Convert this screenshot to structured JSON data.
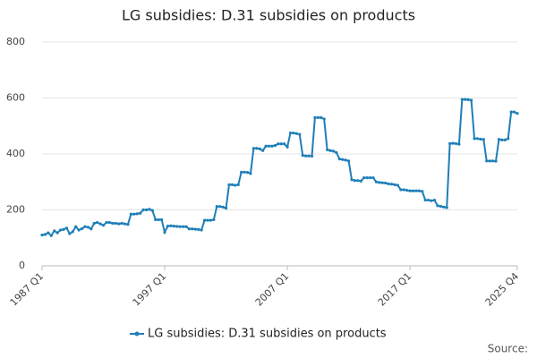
{
  "chart_data": {
    "type": "line",
    "title": "LG subsidies: D.31 subsidies on products",
    "categories": [
      "1987 Q1",
      null,
      null,
      null,
      null,
      null,
      null,
      null,
      null,
      null,
      null,
      null,
      null,
      null,
      null,
      null,
      null,
      null,
      null,
      null,
      null,
      null,
      null,
      null,
      null,
      null,
      null,
      null,
      null,
      null,
      null,
      null,
      null,
      null,
      null,
      null,
      null,
      null,
      null,
      null,
      "1997 Q1",
      null,
      null,
      null,
      null,
      null,
      null,
      null,
      null,
      null,
      null,
      null,
      null,
      null,
      null,
      null,
      null,
      null,
      null,
      null,
      null,
      null,
      null,
      null,
      null,
      null,
      null,
      null,
      null,
      null,
      null,
      null,
      null,
      null,
      null,
      null,
      null,
      null,
      null,
      null,
      "2007 Q1",
      null,
      null,
      null,
      null,
      null,
      null,
      null,
      null,
      null,
      null,
      null,
      null,
      null,
      null,
      null,
      null,
      null,
      null,
      null,
      null,
      null,
      null,
      null,
      null,
      null,
      null,
      null,
      null,
      null,
      null,
      null,
      null,
      null,
      null,
      null,
      null,
      null,
      null,
      null,
      "2017 Q1",
      null,
      null,
      null,
      null,
      null,
      null,
      null,
      null,
      null,
      null,
      null,
      null,
      null,
      null,
      null,
      null,
      null,
      null,
      null,
      null,
      null,
      null,
      null,
      null,
      null,
      null,
      null,
      null,
      null,
      null,
      null,
      null,
      null,
      null,
      "2025 Q4"
    ],
    "series": [
      {
        "name": "LG subsidies: D.31 subsidies on products",
        "color": "#1f7fb8",
        "values": [
          110,
          112,
          118,
          108,
          125,
          118,
          128,
          130,
          135,
          115,
          122,
          140,
          128,
          133,
          140,
          138,
          132,
          152,
          155,
          150,
          145,
          155,
          155,
          152,
          152,
          150,
          152,
          150,
          148,
          185,
          185,
          186,
          188,
          200,
          200,
          202,
          198,
          165,
          165,
          165,
          120,
          142,
          143,
          142,
          141,
          140,
          140,
          140,
          132,
          132,
          131,
          130,
          128,
          163,
          163,
          163,
          165,
          212,
          212,
          210,
          206,
          290,
          290,
          288,
          290,
          335,
          335,
          334,
          330,
          420,
          420,
          418,
          412,
          428,
          428,
          428,
          430,
          436,
          436,
          436,
          425,
          475,
          475,
          473,
          470,
          395,
          393,
          393,
          392,
          530,
          530,
          530,
          525,
          415,
          412,
          410,
          405,
          382,
          380,
          378,
          375,
          308,
          305,
          305,
          303,
          315,
          315,
          315,
          315,
          300,
          298,
          297,
          296,
          293,
          292,
          290,
          288,
          272,
          272,
          270,
          268,
          268,
          268,
          268,
          266,
          235,
          235,
          233,
          235,
          215,
          213,
          210,
          208,
          437,
          438,
          437,
          435,
          595,
          595,
          594,
          592,
          455,
          455,
          453,
          452,
          375,
          375,
          375,
          374,
          452,
          450,
          450,
          455,
          550,
          550,
          545
        ]
      }
    ],
    "ylim": [
      0,
      800
    ],
    "yticks": [
      0,
      200,
      400,
      600,
      800
    ],
    "grid": true,
    "legend": "bottom",
    "source": "Source:"
  }
}
